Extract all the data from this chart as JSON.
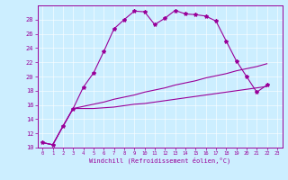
{
  "xlabel": "Windchill (Refroidissement éolien,°C)",
  "background_color": "#cceeff",
  "line_color": "#990099",
  "grid_color": "#aaddcc",
  "xlim": [
    -0.5,
    23.5
  ],
  "ylim": [
    10,
    30
  ],
  "xtick_labels": [
    "0",
    "1",
    "2",
    "3",
    "4",
    "5",
    "6",
    "7",
    "8",
    "9",
    "10",
    "11",
    "12",
    "13",
    "14",
    "15",
    "16",
    "17",
    "18",
    "19",
    "20",
    "21",
    "22",
    "23"
  ],
  "yticks": [
    10,
    12,
    14,
    16,
    18,
    20,
    22,
    24,
    26,
    28
  ],
  "series1": [
    10.7,
    10.4,
    13.0,
    15.5,
    18.5,
    20.5,
    23.5,
    26.7,
    28.0,
    29.2,
    29.1,
    27.3,
    28.2,
    29.3,
    28.8,
    28.7,
    28.5,
    27.8,
    25.0,
    22.2,
    20.0,
    17.8,
    18.8
  ],
  "series2": [
    10.7,
    10.4,
    13.0,
    15.5,
    15.5,
    15.5,
    15.6,
    15.7,
    15.9,
    16.1,
    16.2,
    16.4,
    16.6,
    16.8,
    17.0,
    17.2,
    17.4,
    17.6,
    17.8,
    18.0,
    18.2,
    18.4,
    18.6
  ],
  "series3": [
    10.7,
    10.4,
    13.0,
    15.5,
    15.8,
    16.1,
    16.4,
    16.8,
    17.1,
    17.4,
    17.8,
    18.1,
    18.4,
    18.8,
    19.1,
    19.4,
    19.8,
    20.1,
    20.4,
    20.8,
    21.1,
    21.4,
    21.8
  ]
}
